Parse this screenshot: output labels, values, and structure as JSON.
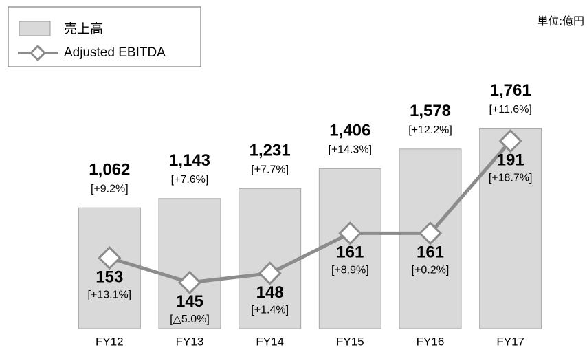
{
  "chart_data": {
    "type": "bar_line",
    "unit_label": "単位:億円",
    "categories": [
      "FY12",
      "FY13",
      "FY14",
      "FY15",
      "FY16",
      "FY17"
    ],
    "ylim": [
      0,
      2000
    ],
    "y2lim": [
      130,
      204
    ],
    "legend": "top-left",
    "series": [
      {
        "name": "売上高",
        "color": "#d9d9d9",
        "values": [
          1062,
          1143,
          1231,
          1406,
          1578,
          1761
        ],
        "value_labels": [
          "1,062",
          "1,143",
          "1,231",
          "1,406",
          "1,578",
          "1,761"
        ],
        "growth_labels": [
          "[+9.2%]",
          "[+7.6%]",
          "[+7.7%]",
          "[+14.3%]",
          "[+12.2%]",
          "[+11.6%]"
        ]
      },
      {
        "name": "Adjusted EBITDA",
        "color": "#8c8c8c",
        "axis": "y2",
        "values": [
          153,
          145,
          148,
          161,
          161,
          191
        ],
        "growth_labels": [
          "[+13.1%]",
          "[△5.0%]",
          "[+1.4%]",
          "[+8.9%]",
          "[+0.2%]",
          "[+18.7%]"
        ]
      }
    ]
  }
}
